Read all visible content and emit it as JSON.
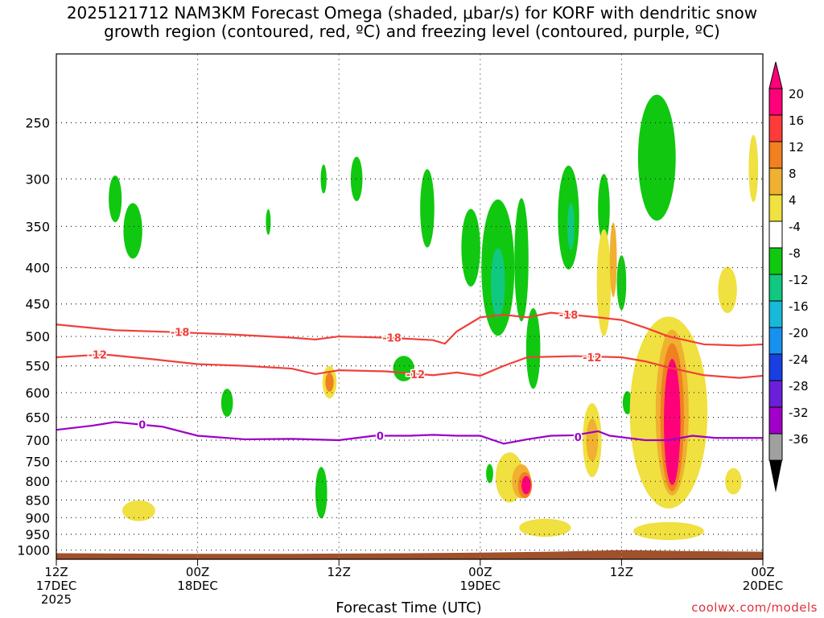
{
  "title_line1": "2025121712 NAM3KM Forecast Omega (shaded, μbar/s) for KORF with dendritic snow",
  "title_line2": "growth region (contoured, red, ºC) and freezing level (contoured, purple, ºC)",
  "xlabel": "Forecast Time (UTC)",
  "credit": "coolwx.com/models",
  "colors": {
    "temp_contour": "#f0403a",
    "freezing_contour": "#9b00c8",
    "terrain": "#a0502a",
    "grid": "#888888"
  },
  "chart_data": {
    "type": "heatmap",
    "y_axis": {
      "label": "",
      "scale": "log-pressure",
      "ylim": [
        1030,
        200
      ],
      "ticks": [
        250,
        300,
        350,
        400,
        450,
        500,
        550,
        600,
        650,
        700,
        750,
        800,
        850,
        900,
        950,
        1000
      ]
    },
    "x_axis": {
      "ticks": [
        {
          "hour": 0,
          "line1": "12Z",
          "line2": "17DEC",
          "line3": "2025"
        },
        {
          "hour": 12,
          "line1": "00Z",
          "line2": "18DEC",
          "line3": ""
        },
        {
          "hour": 24,
          "line1": "12Z",
          "line2": "",
          "line3": ""
        },
        {
          "hour": 36,
          "line1": "00Z",
          "line2": "19DEC",
          "line3": ""
        },
        {
          "hour": 48,
          "line1": "12Z",
          "line2": "",
          "line3": ""
        },
        {
          "hour": 60,
          "line1": "00Z",
          "line2": "20DEC",
          "line3": ""
        }
      ],
      "xlim": [
        0,
        60
      ]
    },
    "colorbar": {
      "labels": [
        "20",
        "16",
        "12",
        "8",
        "4",
        "-4",
        "-8",
        "-12",
        "-16",
        "-20",
        "-24",
        "-28",
        "-32",
        "-36"
      ],
      "colors": [
        "#ff007a",
        "#ff3a3a",
        "#f08020",
        "#f0b030",
        "#f0e040",
        "#ffffff",
        "#10c810",
        "#10c880",
        "#18b8d8",
        "#1890f0",
        "#1840e0",
        "#6a20d8",
        "#a000c8",
        "#a0a0a0"
      ]
    },
    "contours": [
      {
        "name": "-18",
        "color": "red",
        "points": [
          [
            0,
            481
          ],
          [
            5,
            490
          ],
          [
            10,
            493
          ],
          [
            15,
            497
          ],
          [
            20,
            502
          ],
          [
            22,
            505
          ],
          [
            24,
            500
          ],
          [
            28,
            502
          ],
          [
            32,
            506
          ],
          [
            33,
            512
          ],
          [
            34,
            492
          ],
          [
            36,
            470
          ],
          [
            38,
            466
          ],
          [
            40,
            470
          ],
          [
            42,
            463
          ],
          [
            46,
            470
          ],
          [
            48,
            474
          ],
          [
            50,
            486
          ],
          [
            52,
            500
          ],
          [
            55,
            513
          ],
          [
            58,
            515
          ],
          [
            60,
            513
          ]
        ],
        "labels": [
          [
            10.5,
            493
          ],
          [
            28.5,
            502
          ],
          [
            43.5,
            466
          ]
        ]
      },
      {
        "name": "-12",
        "color": "red",
        "points": [
          [
            0,
            535
          ],
          [
            4,
            530
          ],
          [
            8,
            538
          ],
          [
            12,
            547
          ],
          [
            16,
            550
          ],
          [
            20,
            555
          ],
          [
            22,
            565
          ],
          [
            24,
            558
          ],
          [
            28,
            560
          ],
          [
            32,
            567
          ],
          [
            34,
            562
          ],
          [
            36,
            568
          ],
          [
            38,
            550
          ],
          [
            40,
            535
          ],
          [
            44,
            533
          ],
          [
            48,
            535
          ],
          [
            50,
            542
          ],
          [
            52,
            553
          ],
          [
            55,
            567
          ],
          [
            58,
            572
          ],
          [
            60,
            568
          ]
        ],
        "labels": [
          [
            3.5,
            530
          ],
          [
            30.5,
            565
          ],
          [
            45.5,
            535
          ]
        ]
      },
      {
        "name": "0",
        "color": "purple",
        "points": [
          [
            0,
            677
          ],
          [
            3,
            668
          ],
          [
            5,
            660
          ],
          [
            7,
            665
          ],
          [
            9,
            670
          ],
          [
            12,
            690
          ],
          [
            16,
            698
          ],
          [
            20,
            697
          ],
          [
            24,
            700
          ],
          [
            27,
            690
          ],
          [
            30,
            690
          ],
          [
            32,
            688
          ],
          [
            34,
            690
          ],
          [
            36,
            690
          ],
          [
            38,
            708
          ],
          [
            40,
            698
          ],
          [
            42,
            690
          ],
          [
            44,
            689
          ],
          [
            46,
            680
          ],
          [
            47,
            690
          ],
          [
            50,
            700
          ],
          [
            52,
            700
          ],
          [
            54,
            690
          ],
          [
            56,
            695
          ],
          [
            60,
            695
          ]
        ],
        "labels": [
          [
            7.3,
            665
          ],
          [
            27.5,
            690
          ],
          [
            44.3,
            693
          ]
        ]
      }
    ],
    "blobs": [
      {
        "hour": 5,
        "p": 320,
        "dh": 0.55,
        "dp": 45,
        "level": "-8"
      },
      {
        "hour": 6.5,
        "p": 355,
        "dh": 0.8,
        "dp": 60,
        "level": "-8"
      },
      {
        "hour": 18,
        "p": 345,
        "dh": 0.2,
        "dp": 25,
        "level": "-8"
      },
      {
        "hour": 25.5,
        "p": 300,
        "dh": 0.5,
        "dp": 40,
        "level": "-8"
      },
      {
        "hour": 22.7,
        "p": 300,
        "dh": 0.25,
        "dp": 25,
        "level": "-8"
      },
      {
        "hour": 31.5,
        "p": 330,
        "dh": 0.6,
        "dp": 80,
        "level": "-8"
      },
      {
        "hour": 35.2,
        "p": 375,
        "dh": 0.8,
        "dp": 90,
        "level": "-8"
      },
      {
        "hour": 37.5,
        "p": 400,
        "dh": 1.4,
        "dp": 170,
        "level": "-8"
      },
      {
        "hour": 37.5,
        "p": 420,
        "dh": 0.6,
        "dp": 90,
        "level": "-12"
      },
      {
        "hour": 39.5,
        "p": 390,
        "dh": 0.6,
        "dp": 150,
        "level": "-8"
      },
      {
        "hour": 40.5,
        "p": 520,
        "dh": 0.6,
        "dp": 130,
        "level": "-8"
      },
      {
        "hour": 43.5,
        "p": 340,
        "dh": 0.9,
        "dp": 110,
        "level": "-8"
      },
      {
        "hour": 43.7,
        "p": 350,
        "dh": 0.3,
        "dp": 50,
        "level": "-12"
      },
      {
        "hour": 46.5,
        "p": 330,
        "dh": 0.5,
        "dp": 70,
        "level": "-8"
      },
      {
        "hour": 48,
        "p": 420,
        "dh": 0.4,
        "dp": 70,
        "level": "-8"
      },
      {
        "hour": 51,
        "p": 280,
        "dh": 1.6,
        "dp": 110,
        "level": "-8"
      },
      {
        "hour": 29.5,
        "p": 555,
        "dh": 0.9,
        "dp": 40,
        "level": "-8"
      },
      {
        "hour": 14.5,
        "p": 620,
        "dh": 0.5,
        "dp": 50,
        "level": "-8"
      },
      {
        "hour": 22.5,
        "p": 830,
        "dh": 0.5,
        "dp": 130,
        "level": "-8"
      },
      {
        "hour": 48.5,
        "p": 620,
        "dh": 0.4,
        "dp": 40,
        "level": "-8"
      },
      {
        "hour": 50.2,
        "p": 660,
        "dh": 0.25,
        "dp": 40,
        "level": "-8"
      },
      {
        "hour": 36.8,
        "p": 780,
        "dh": 0.3,
        "dp": 40,
        "level": "-8"
      },
      {
        "hour": 46.5,
        "p": 420,
        "dh": 0.6,
        "dp": 140,
        "level": "4"
      },
      {
        "hour": 47.3,
        "p": 390,
        "dh": 0.3,
        "dp": 90,
        "level": "8"
      },
      {
        "hour": 57,
        "p": 430,
        "dh": 0.8,
        "dp": 60,
        "level": "4"
      },
      {
        "hour": 59.2,
        "p": 290,
        "dh": 0.4,
        "dp": 60,
        "level": "4"
      },
      {
        "hour": 23.2,
        "p": 580,
        "dh": 0.6,
        "dp": 55,
        "level": "4"
      },
      {
        "hour": 23.2,
        "p": 580,
        "dh": 0.35,
        "dp": 30,
        "level": "12"
      },
      {
        "hour": 7,
        "p": 880,
        "dh": 1.4,
        "dp": 50,
        "level": "4"
      },
      {
        "hour": 38.5,
        "p": 790,
        "dh": 1.2,
        "dp": 120,
        "level": "4"
      },
      {
        "hour": 39.5,
        "p": 800,
        "dh": 0.8,
        "dp": 80,
        "level": "8"
      },
      {
        "hour": 39.8,
        "p": 810,
        "dh": 0.6,
        "dp": 60,
        "level": "12"
      },
      {
        "hour": 39.9,
        "p": 810,
        "dh": 0.4,
        "dp": 40,
        "level": "20"
      },
      {
        "hour": 45.5,
        "p": 700,
        "dh": 0.8,
        "dp": 160,
        "level": "4"
      },
      {
        "hour": 45.5,
        "p": 700,
        "dh": 0.5,
        "dp": 90,
        "level": "8"
      },
      {
        "hour": 52,
        "p": 640,
        "dh": 3.3,
        "dp": 380,
        "level": "4"
      },
      {
        "hour": 52.3,
        "p": 640,
        "dh": 1.4,
        "dp": 330,
        "level": "8"
      },
      {
        "hour": 52.3,
        "p": 650,
        "dh": 1.0,
        "dp": 300,
        "level": "12"
      },
      {
        "hour": 52.3,
        "p": 660,
        "dh": 0.7,
        "dp": 260,
        "level": "20"
      },
      {
        "hour": 52,
        "p": 940,
        "dh": 3.0,
        "dp": 45,
        "level": "4"
      },
      {
        "hour": 41.5,
        "p": 930,
        "dh": 2.2,
        "dp": 45,
        "level": "4"
      },
      {
        "hour": 57.5,
        "p": 800,
        "dh": 0.7,
        "dp": 60,
        "level": "4"
      }
    ],
    "terrain": [
      [
        0,
        1010
      ],
      [
        10,
        1012
      ],
      [
        20,
        1012
      ],
      [
        30,
        1010
      ],
      [
        36,
        1008
      ],
      [
        42,
        1005
      ],
      [
        48,
        1000
      ],
      [
        54,
        1003
      ],
      [
        60,
        1005
      ]
    ]
  }
}
